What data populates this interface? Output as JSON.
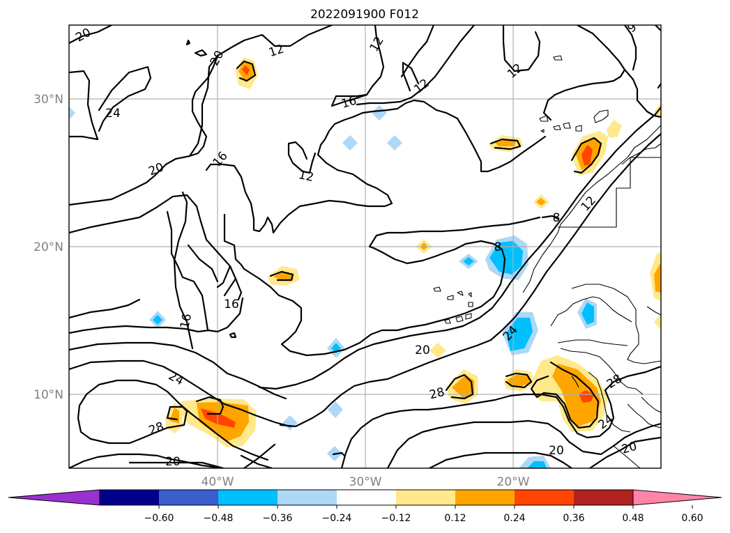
{
  "title": "2022091900 F012",
  "map": {
    "lat_labels": [
      "30°N",
      "20°N",
      "10°N"
    ],
    "lon_labels": [
      "40°W",
      "30°W",
      "20°W"
    ],
    "contour_labels": [
      "20",
      "20",
      "12",
      "12",
      "12",
      "24",
      "16",
      "12",
      "20",
      "16",
      "12",
      "8",
      "8",
      "16",
      "16",
      "24",
      "20",
      "24",
      "28",
      "28",
      "28",
      "24",
      "20",
      "20",
      "20"
    ]
  },
  "colorbar": {
    "ticks": [
      "−0.60",
      "−0.48",
      "−0.36",
      "−0.24",
      "−0.12",
      "0.12",
      "0.24",
      "0.36",
      "0.48",
      "0.60"
    ],
    "colors": [
      "#9b30d0",
      "#00008b",
      "#3a5fcd",
      "#00bfff",
      "#add8f6",
      "#ffffff",
      "#ffe98c",
      "#ffa500",
      "#ff4500",
      "#b22222",
      "#ff85a8"
    ]
  },
  "colors": {
    "neg_light": "#add8f6",
    "neg_mid": "#00bfff",
    "pos_light": "#ffe98c",
    "pos_mid": "#ffa500",
    "pos_strong": "#ff4500"
  }
}
